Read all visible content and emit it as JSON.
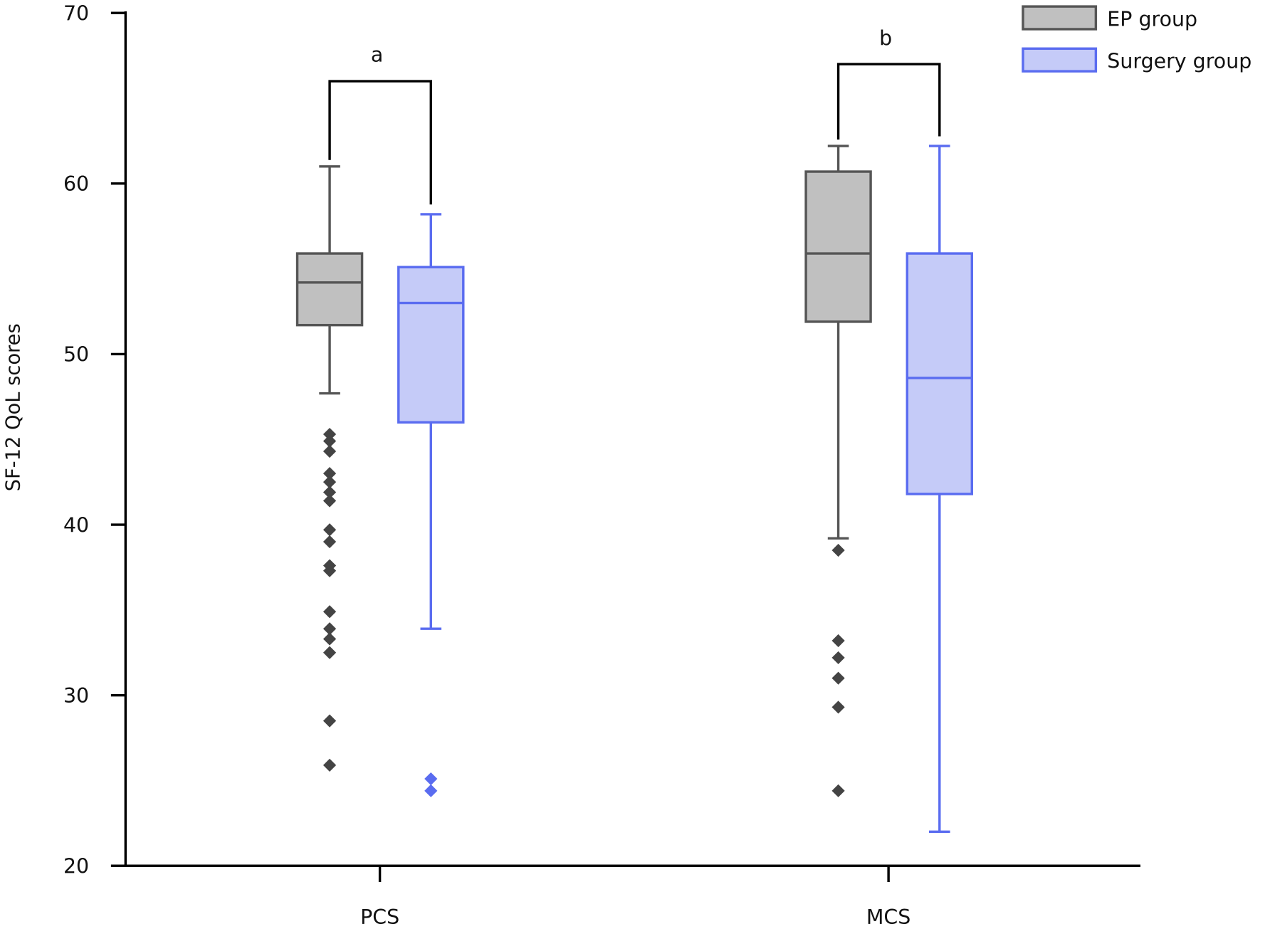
{
  "chart_data": {
    "type": "box",
    "title": "",
    "xlabel": "",
    "ylabel": "SF-12 QoL scores",
    "ylim": [
      20,
      70
    ],
    "yticks": [
      20,
      30,
      40,
      50,
      60,
      70
    ],
    "categories": [
      "PCS",
      "MCS"
    ],
    "legend_position": "top-right",
    "series": [
      {
        "name": "EP group",
        "fill": "#c0c0c0",
        "stroke": "#555555",
        "outlier_color": "#444444",
        "boxes": [
          {
            "category": "PCS",
            "whisker_high": 61.0,
            "q3": 55.9,
            "median": 54.2,
            "q1": 51.7,
            "whisker_low": 47.7,
            "outliers": [
              45.3,
              44.9,
              44.3,
              43.0,
              42.5,
              41.9,
              41.4,
              39.7,
              39.0,
              37.6,
              37.3,
              34.9,
              33.9,
              33.3,
              32.5,
              28.5,
              25.9
            ]
          },
          {
            "category": "MCS",
            "whisker_high": 62.2,
            "q3": 60.7,
            "median": 55.9,
            "q1": 51.9,
            "whisker_low": 39.2,
            "outliers": [
              38.5,
              33.2,
              32.2,
              31.0,
              29.3,
              24.4
            ]
          }
        ]
      },
      {
        "name": "Surgery group",
        "fill": "#c5cbf8",
        "stroke": "#5a6cf0",
        "outlier_color": "#5a6cf0",
        "boxes": [
          {
            "category": "PCS",
            "whisker_high": 58.2,
            "q3": 55.1,
            "median": 53.0,
            "q1": 46.0,
            "whisker_low": 33.9,
            "outliers": [
              25.1,
              24.4
            ]
          },
          {
            "category": "MCS",
            "whisker_high": 62.2,
            "q3": 55.9,
            "median": 48.6,
            "q1": 41.8,
            "whisker_low": 22.0,
            "outliers": []
          }
        ]
      }
    ],
    "annotations": [
      {
        "category": "PCS",
        "label": "a",
        "bracket_y": 66.0
      },
      {
        "category": "MCS",
        "label": "b",
        "bracket_y": 67.0
      }
    ]
  }
}
